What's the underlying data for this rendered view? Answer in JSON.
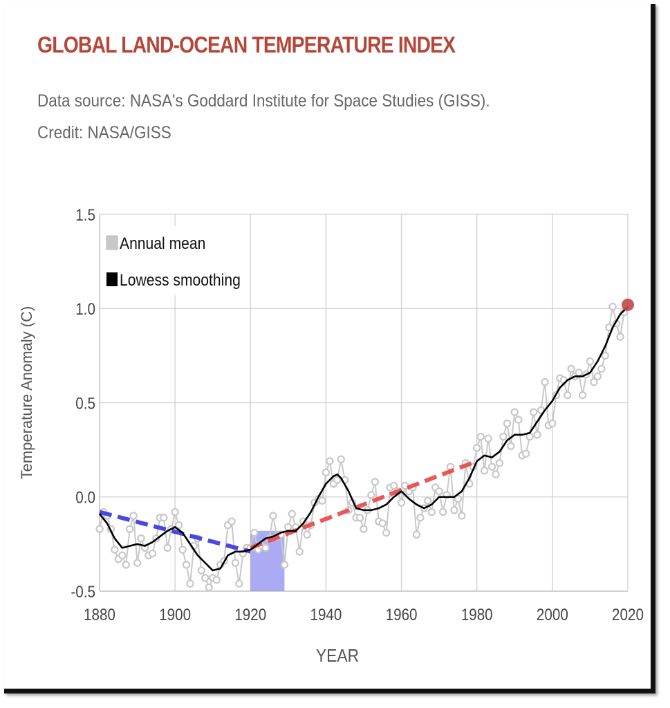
{
  "header": {
    "title": "GLOBAL LAND-OCEAN TEMPERATURE INDEX",
    "source": "Data source: NASA's Goddard Institute for Space Studies (GISS).",
    "credit": "Credit: NASA/GISS"
  },
  "chart_data": {
    "type": "line",
    "xlabel": "YEAR",
    "ylabel": "Temperature Anomaly (C)",
    "xlim": [
      1880,
      2020
    ],
    "ylim": [
      -0.5,
      1.5
    ],
    "x_ticks": [
      "1880",
      "1900",
      "1920",
      "1940",
      "1960",
      "1980",
      "2000",
      "2020"
    ],
    "y_ticks": [
      "1.5",
      "1.0",
      "0.5",
      "0.0",
      "-0.5"
    ],
    "grid": true,
    "legend_position": "top-left",
    "legend": [
      {
        "label": "Annual mean",
        "color": "#c8c8c8"
      },
      {
        "label": "Lowess smoothing",
        "color": "#000000"
      }
    ],
    "series": [
      {
        "name": "Annual mean",
        "color": "#c8c8c8",
        "x": [
          1880,
          1881,
          1882,
          1883,
          1884,
          1885,
          1886,
          1887,
          1888,
          1889,
          1890,
          1891,
          1892,
          1893,
          1894,
          1895,
          1896,
          1897,
          1898,
          1899,
          1900,
          1901,
          1902,
          1903,
          1904,
          1905,
          1906,
          1907,
          1908,
          1909,
          1910,
          1911,
          1912,
          1913,
          1914,
          1915,
          1916,
          1917,
          1918,
          1919,
          1920,
          1921,
          1922,
          1923,
          1924,
          1925,
          1926,
          1927,
          1928,
          1929,
          1930,
          1931,
          1932,
          1933,
          1934,
          1935,
          1936,
          1937,
          1938,
          1939,
          1940,
          1941,
          1942,
          1943,
          1944,
          1945,
          1946,
          1947,
          1948,
          1949,
          1950,
          1951,
          1952,
          1953,
          1954,
          1955,
          1956,
          1957,
          1958,
          1959,
          1960,
          1961,
          1962,
          1963,
          1964,
          1965,
          1966,
          1967,
          1968,
          1969,
          1970,
          1971,
          1972,
          1973,
          1974,
          1975,
          1976,
          1977,
          1978,
          1979,
          1980,
          1981,
          1982,
          1983,
          1984,
          1985,
          1986,
          1987,
          1988,
          1989,
          1990,
          1991,
          1992,
          1993,
          1994,
          1995,
          1996,
          1997,
          1998,
          1999,
          2000,
          2001,
          2002,
          2003,
          2004,
          2005,
          2006,
          2007,
          2008,
          2009,
          2010,
          2011,
          2012,
          2013,
          2014,
          2015,
          2016,
          2017,
          2018,
          2019
        ],
        "values": [
          -0.17,
          -0.08,
          -0.1,
          -0.17,
          -0.28,
          -0.33,
          -0.31,
          -0.36,
          -0.17,
          -0.1,
          -0.35,
          -0.22,
          -0.27,
          -0.31,
          -0.3,
          -0.22,
          -0.11,
          -0.11,
          -0.27,
          -0.17,
          -0.08,
          -0.15,
          -0.28,
          -0.36,
          -0.46,
          -0.26,
          -0.22,
          -0.39,
          -0.43,
          -0.48,
          -0.43,
          -0.44,
          -0.36,
          -0.34,
          -0.15,
          -0.13,
          -0.35,
          -0.46,
          -0.3,
          -0.27,
          -0.27,
          -0.19,
          -0.28,
          -0.26,
          -0.27,
          -0.22,
          -0.1,
          -0.21,
          -0.2,
          -0.36,
          -0.16,
          -0.09,
          -0.16,
          -0.29,
          -0.13,
          -0.2,
          -0.15,
          -0.03,
          -0.01,
          -0.02,
          0.13,
          0.19,
          0.07,
          0.09,
          0.2,
          0.09,
          -0.07,
          -0.03,
          -0.11,
          -0.11,
          -0.17,
          -0.07,
          0.01,
          0.08,
          -0.13,
          -0.14,
          -0.19,
          0.05,
          0.06,
          0.03,
          -0.03,
          0.06,
          0.03,
          0.05,
          -0.2,
          -0.11,
          -0.06,
          -0.02,
          -0.08,
          0.05,
          0.03,
          -0.08,
          0.01,
          0.16,
          -0.07,
          -0.01,
          -0.1,
          0.18,
          0.07,
          0.16,
          0.26,
          0.32,
          0.14,
          0.31,
          0.16,
          0.12,
          0.18,
          0.32,
          0.39,
          0.27,
          0.45,
          0.41,
          0.22,
          0.23,
          0.32,
          0.45,
          0.33,
          0.46,
          0.61,
          0.38,
          0.39,
          0.54,
          0.63,
          0.62,
          0.54,
          0.68,
          0.64,
          0.66,
          0.54,
          0.65,
          0.72,
          0.61,
          0.64,
          0.68,
          0.75,
          0.9,
          1.01,
          0.92,
          0.85,
          0.98
        ]
      },
      {
        "name": "Lowess smoothing",
        "color": "#000000",
        "x": [
          1880,
          1882,
          1884,
          1886,
          1888,
          1890,
          1892,
          1894,
          1896,
          1898,
          1900,
          1902,
          1904,
          1906,
          1908,
          1910,
          1912,
          1914,
          1916,
          1918,
          1920,
          1922,
          1924,
          1926,
          1928,
          1930,
          1932,
          1934,
          1936,
          1938,
          1940,
          1942,
          1943,
          1944,
          1946,
          1948,
          1950,
          1952,
          1954,
          1956,
          1958,
          1960,
          1962,
          1964,
          1966,
          1968,
          1970,
          1972,
          1974,
          1976,
          1978,
          1980,
          1982,
          1984,
          1986,
          1988,
          1990,
          1992,
          1994,
          1996,
          1998,
          2000,
          2002,
          2004,
          2006,
          2008,
          2010,
          2012,
          2014,
          2016,
          2018,
          2020
        ],
        "values": [
          -0.09,
          -0.14,
          -0.22,
          -0.27,
          -0.26,
          -0.25,
          -0.26,
          -0.24,
          -0.21,
          -0.18,
          -0.16,
          -0.19,
          -0.25,
          -0.31,
          -0.35,
          -0.39,
          -0.38,
          -0.31,
          -0.29,
          -0.29,
          -0.28,
          -0.25,
          -0.22,
          -0.21,
          -0.19,
          -0.18,
          -0.18,
          -0.14,
          -0.08,
          0.0,
          0.07,
          0.11,
          0.12,
          0.1,
          0.03,
          -0.06,
          -0.07,
          -0.07,
          -0.06,
          -0.04,
          0.0,
          0.03,
          -0.01,
          -0.04,
          -0.06,
          -0.04,
          0.0,
          0.0,
          0.0,
          0.03,
          0.1,
          0.19,
          0.22,
          0.21,
          0.24,
          0.3,
          0.33,
          0.33,
          0.34,
          0.4,
          0.46,
          0.51,
          0.58,
          0.62,
          0.64,
          0.64,
          0.66,
          0.72,
          0.8,
          0.9,
          0.97,
          1.01
        ]
      }
    ],
    "overlays": [
      {
        "type": "dashed-line",
        "color": "#3a3adf",
        "x": [
          1880,
          1920
        ],
        "y": [
          -0.08,
          -0.29
        ]
      },
      {
        "type": "dashed-line",
        "color": "#e84a4a",
        "x": [
          1920,
          1980
        ],
        "y": [
          -0.27,
          0.19
        ]
      },
      {
        "type": "shaded-region",
        "color": "#8f8ff0",
        "x": [
          1920,
          1929
        ],
        "y": [
          -0.5,
          -0.18
        ]
      },
      {
        "type": "marker",
        "color": "#c0474d",
        "x": 2020,
        "y": 1.02
      }
    ]
  }
}
